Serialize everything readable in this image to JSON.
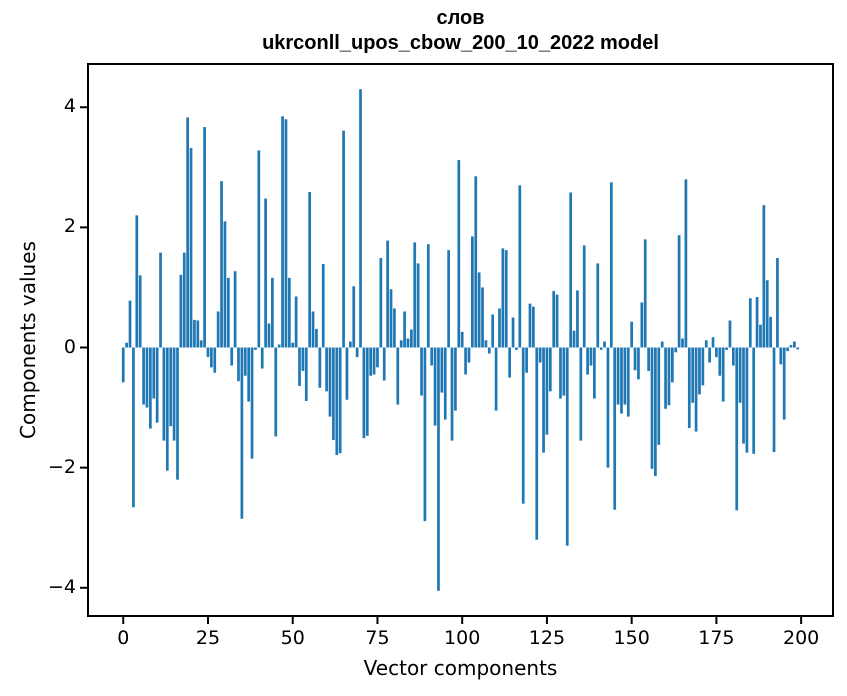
{
  "title": {
    "line1": "слов",
    "line2": "ukrconll_upos_cbow_200_10_2022 model"
  },
  "chart_data": {
    "type": "bar",
    "title": "слов",
    "subtitle": "ukrconll_upos_cbow_200_10_2022 model",
    "xlabel": "Vector components",
    "ylabel": "Components values",
    "x_ticks": [
      0,
      25,
      50,
      75,
      100,
      125,
      150,
      175,
      200
    ],
    "y_ticks": [
      -4,
      -2,
      0,
      2,
      4
    ],
    "xlim": [
      -10.4,
      209.4
    ],
    "ylim": [
      -4.47,
      4.72
    ],
    "grid": false,
    "legend": "none",
    "bar_color": "#1f77b4",
    "n_components": 200,
    "values": [
      -0.58,
      0.08,
      0.78,
      -2.66,
      2.2,
      1.2,
      -0.95,
      -1.0,
      -1.35,
      -0.85,
      -1.25,
      1.58,
      -1.55,
      -2.05,
      -1.31,
      -1.55,
      -2.2,
      1.21,
      1.58,
      3.83,
      3.32,
      0.46,
      0.45,
      0.12,
      3.67,
      -0.16,
      -0.33,
      -0.42,
      0.6,
      2.77,
      2.1,
      1.16,
      -0.3,
      1.27,
      -0.56,
      -2.85,
      -0.47,
      -0.9,
      -1.85,
      -0.04,
      3.28,
      -0.35,
      2.48,
      0.4,
      1.16,
      -1.48,
      0.05,
      3.85,
      3.8,
      1.16,
      0.08,
      0.85,
      -0.64,
      -0.39,
      -0.89,
      2.59,
      0.6,
      0.31,
      -0.67,
      1.39,
      -0.73,
      -1.15,
      -1.54,
      -1.79,
      -1.76,
      3.61,
      -0.87,
      0.1,
      1.02,
      -0.16,
      4.3,
      -1.51,
      -1.47,
      -0.47,
      -0.45,
      -0.33,
      1.49,
      -0.55,
      1.78,
      0.97,
      0.65,
      -0.95,
      0.12,
      0.6,
      0.15,
      0.3,
      1.75,
      1.4,
      -0.8,
      -2.89,
      1.72,
      -0.3,
      -1.3,
      -4.05,
      -0.75,
      -1.2,
      1.62,
      -1.55,
      -1.05,
      3.12,
      0.26,
      -0.45,
      -0.25,
      1.85,
      2.85,
      1.25,
      1.0,
      0.12,
      -0.1,
      0.55,
      -1.05,
      0.65,
      1.65,
      1.62,
      -0.5,
      0.5,
      -0.04,
      2.7,
      -2.6,
      -0.42,
      0.73,
      0.68,
      -3.2,
      -0.25,
      -1.75,
      -1.45,
      -0.73,
      0.94,
      0.88,
      -0.85,
      -0.8,
      -3.3,
      2.58,
      0.28,
      0.95,
      -1.55,
      1.7,
      -0.45,
      -0.3,
      -0.85,
      1.4,
      -0.04,
      0.1,
      -2.0,
      2.75,
      -2.7,
      -0.95,
      -1.1,
      -0.95,
      -1.15,
      0.43,
      -0.38,
      -0.53,
      0.75,
      1.8,
      -0.39,
      -2.02,
      -2.14,
      -1.62,
      0.1,
      -1.02,
      -0.96,
      -0.58,
      -0.08,
      1.87,
      0.15,
      2.8,
      -1.34,
      -0.92,
      -1.4,
      -0.78,
      -0.63,
      0.12,
      -0.25,
      0.17,
      -0.16,
      -0.47,
      -0.9,
      -0.04,
      0.45,
      -0.3,
      -2.71,
      -0.92,
      -1.6,
      -1.75,
      0.82,
      -1.77,
      0.84,
      0.38,
      2.37,
      1.12,
      0.51,
      -1.74,
      1.49,
      -0.28,
      -1.2,
      -0.06,
      0.04,
      0.1,
      -0.03
    ]
  }
}
